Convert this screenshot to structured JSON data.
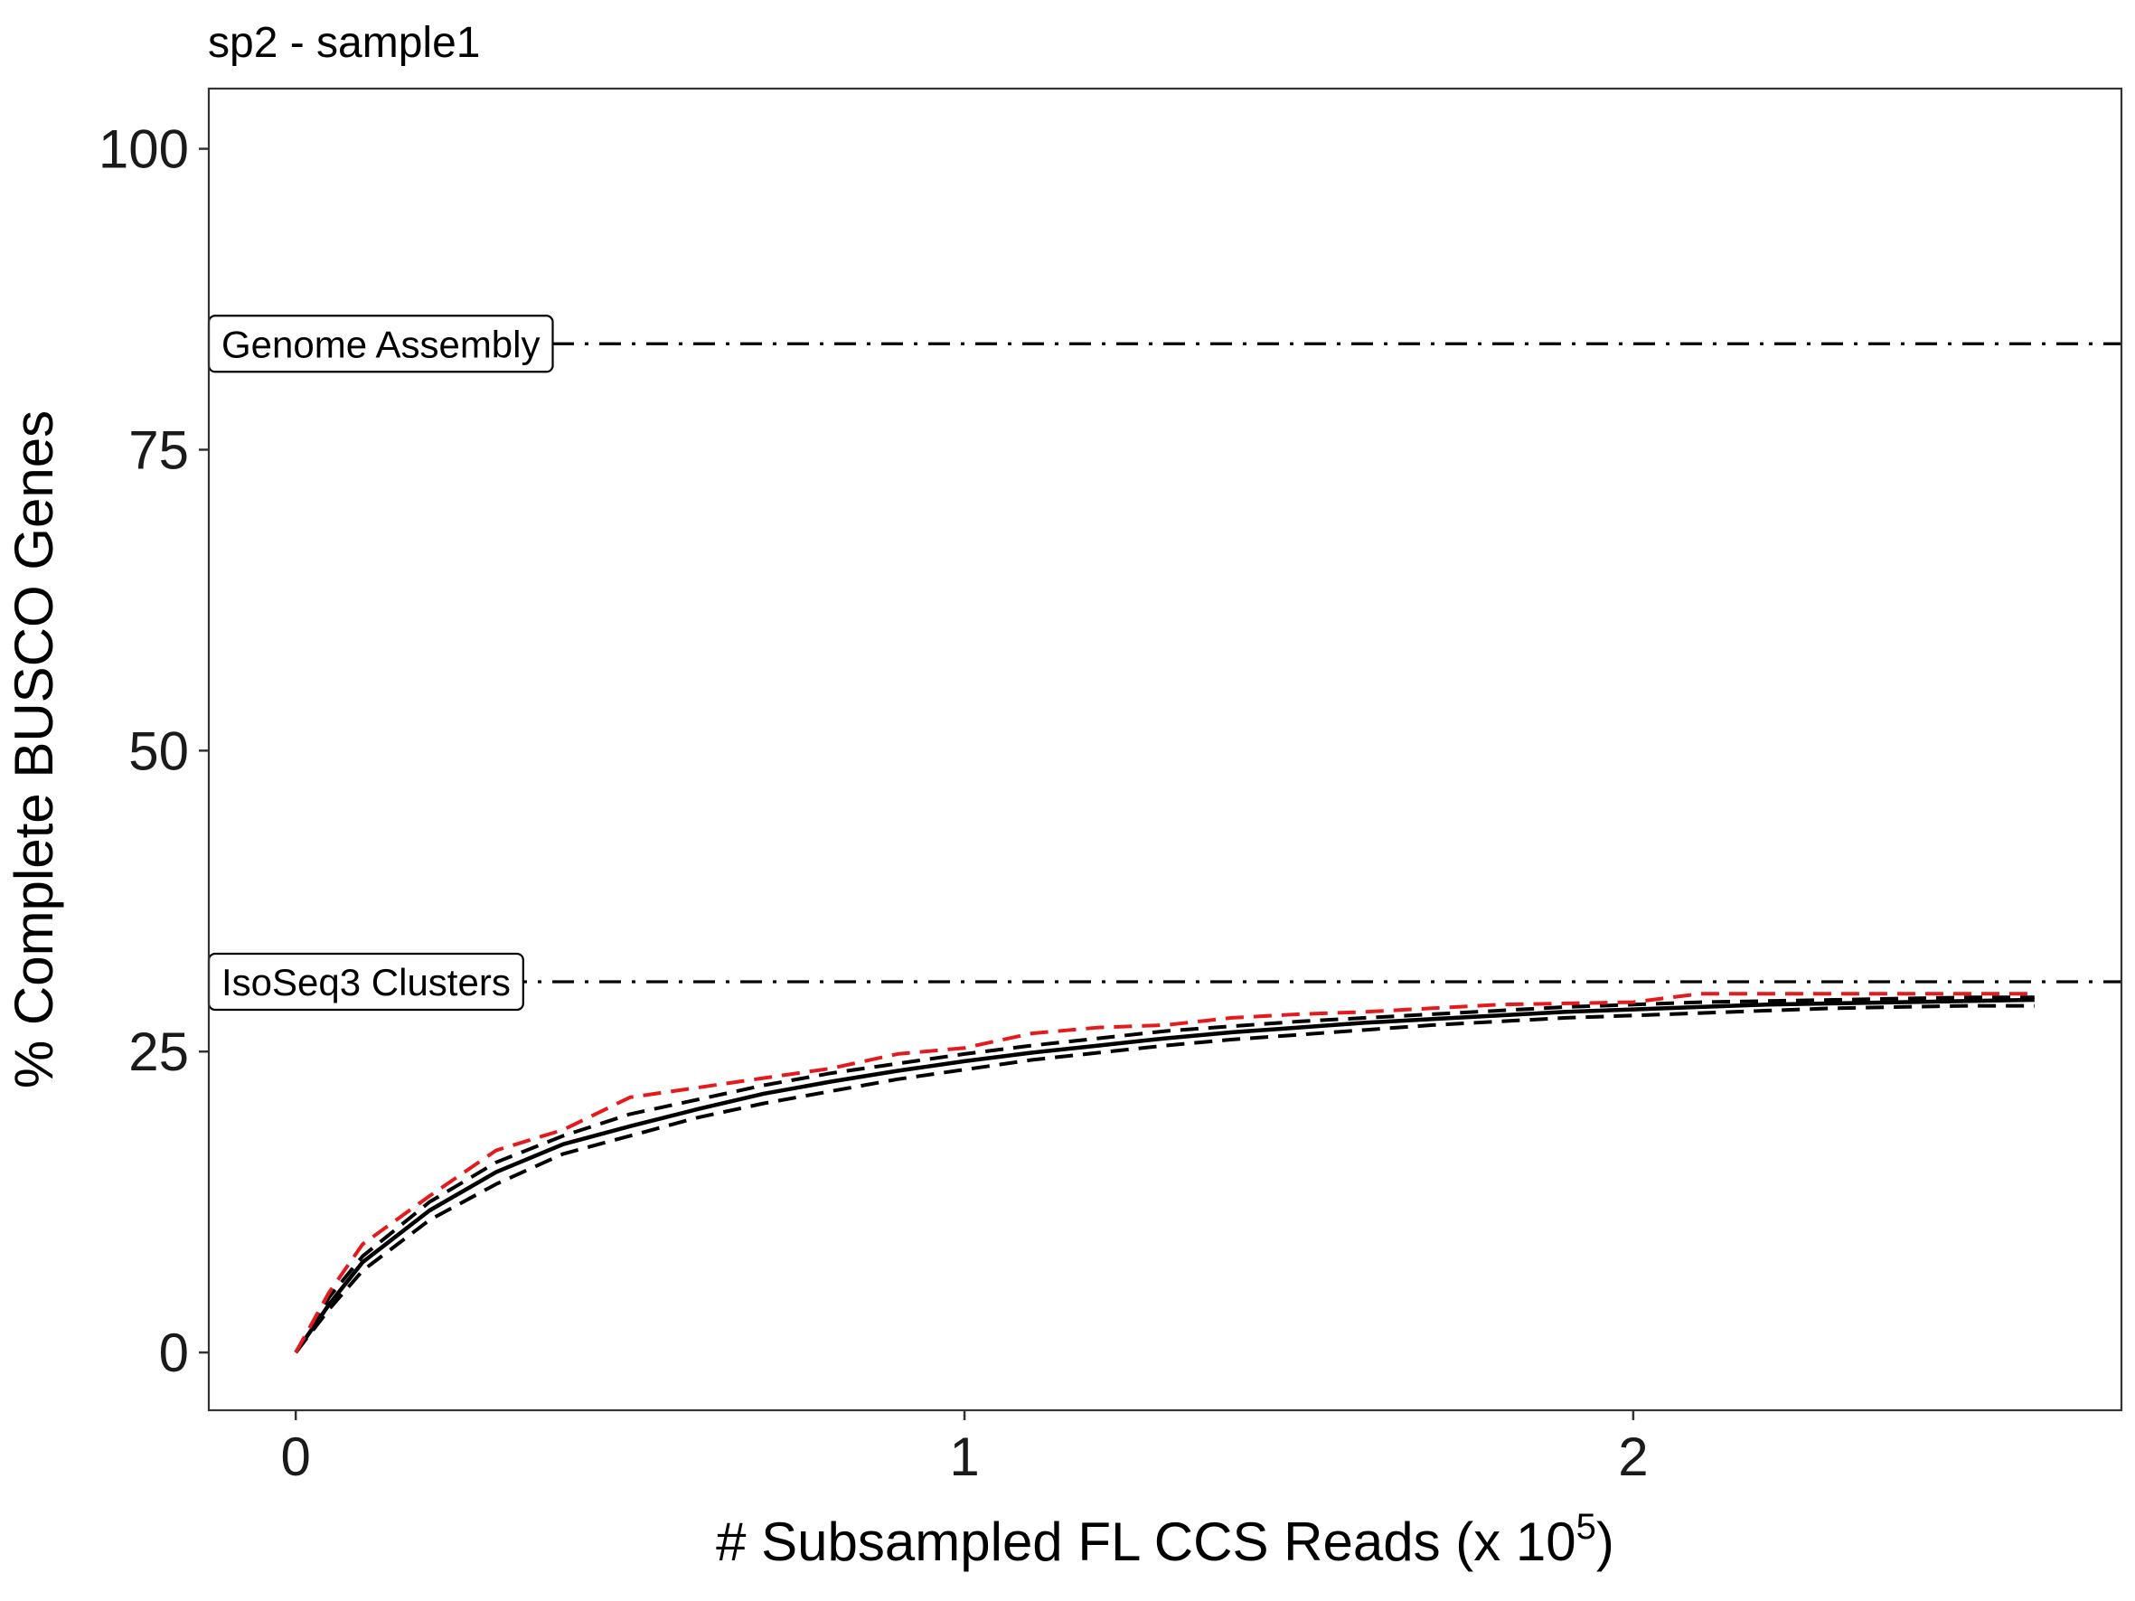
{
  "chart_data": {
    "type": "line",
    "title": "sp2 - sample1",
    "xlabel_prefix": "# Subsampled FL CCS Reads (x 10",
    "xlabel_exponent": "5",
    "xlabel_suffix": ")",
    "ylabel": "% Complete BUSCO Genes",
    "xlim": [
      -0.13,
      2.73
    ],
    "ylim": [
      -4.8,
      105
    ],
    "x_ticks": [
      0,
      1,
      2
    ],
    "x_tick_labels": [
      "0",
      "1",
      "2"
    ],
    "y_ticks": [
      0,
      25,
      50,
      75,
      100
    ],
    "y_tick_labels": [
      "0",
      "25",
      "50",
      "75",
      "100"
    ],
    "grid": false,
    "series": [
      {
        "style": "solid",
        "color": "#000000",
        "x": [
          0,
          0.05,
          0.1,
          0.2,
          0.3,
          0.4,
          0.5,
          0.6,
          0.7,
          0.8,
          0.9,
          1.0,
          1.1,
          1.2,
          1.3,
          1.4,
          1.5,
          1.6,
          1.7,
          1.8,
          1.9,
          2.0,
          2.1,
          2.2,
          2.3,
          2.4,
          2.5,
          2.6
        ],
        "y": [
          0,
          4.0,
          7.5,
          11.8,
          15.0,
          17.3,
          18.8,
          20.2,
          21.5,
          22.5,
          23.4,
          24.2,
          24.9,
          25.5,
          26.1,
          26.6,
          27.0,
          27.4,
          27.7,
          28.0,
          28.3,
          28.5,
          28.7,
          28.9,
          29.0,
          29.1,
          29.2,
          29.3
        ]
      },
      {
        "style": "dashed",
        "color": "#000000",
        "x": [
          0,
          0.05,
          0.1,
          0.2,
          0.3,
          0.4,
          0.5,
          0.6,
          0.7,
          0.8,
          0.9,
          1.0,
          1.1,
          1.2,
          1.3,
          1.4,
          1.5,
          1.6,
          1.7,
          1.8,
          1.9,
          2.0,
          2.1,
          2.2,
          2.3,
          2.4,
          2.5,
          2.6
        ],
        "y": [
          0,
          4.6,
          8.0,
          12.5,
          15.8,
          18.0,
          19.8,
          21.0,
          22.2,
          23.2,
          24.0,
          24.8,
          25.5,
          26.1,
          26.7,
          27.1,
          27.5,
          27.8,
          28.1,
          28.4,
          28.7,
          28.9,
          29.1,
          29.2,
          29.3,
          29.4,
          29.5,
          29.5
        ]
      },
      {
        "style": "dashed",
        "color": "#000000",
        "x": [
          0,
          0.05,
          0.1,
          0.2,
          0.3,
          0.4,
          0.5,
          0.6,
          0.7,
          0.8,
          0.9,
          1.0,
          1.1,
          1.2,
          1.3,
          1.4,
          1.5,
          1.6,
          1.7,
          1.8,
          1.9,
          2.0,
          2.1,
          2.2,
          2.3,
          2.4,
          2.5,
          2.6
        ],
        "y": [
          0,
          3.6,
          6.8,
          11.0,
          14.0,
          16.5,
          18.0,
          19.5,
          20.7,
          21.7,
          22.7,
          23.5,
          24.3,
          24.9,
          25.5,
          26.0,
          26.4,
          26.8,
          27.2,
          27.5,
          27.8,
          28.0,
          28.2,
          28.4,
          28.6,
          28.7,
          28.8,
          28.8
        ]
      },
      {
        "style": "dashed",
        "color": "#e41a1c",
        "x": [
          0,
          0.05,
          0.1,
          0.2,
          0.3,
          0.4,
          0.5,
          0.6,
          0.7,
          0.8,
          0.9,
          1.0,
          1.1,
          1.2,
          1.3,
          1.4,
          1.5,
          1.6,
          1.7,
          1.8,
          1.9,
          2.0,
          2.1,
          2.2,
          2.3,
          2.4,
          2.5,
          2.6
        ],
        "y": [
          0,
          5.0,
          9.0,
          13.0,
          16.8,
          18.5,
          21.2,
          22.0,
          22.8,
          23.6,
          24.8,
          25.3,
          26.5,
          27.0,
          27.2,
          27.8,
          28.1,
          28.3,
          28.6,
          28.9,
          29.0,
          29.1,
          29.8,
          29.8,
          29.8,
          29.8,
          29.8,
          29.8
        ]
      }
    ],
    "reference_lines": [
      {
        "label": "Genome Assembly",
        "y": 83.8,
        "style": "dotdash"
      },
      {
        "label": "IsoSeq3 Clusters",
        "y": 30.8,
        "style": "dotdash"
      }
    ]
  }
}
